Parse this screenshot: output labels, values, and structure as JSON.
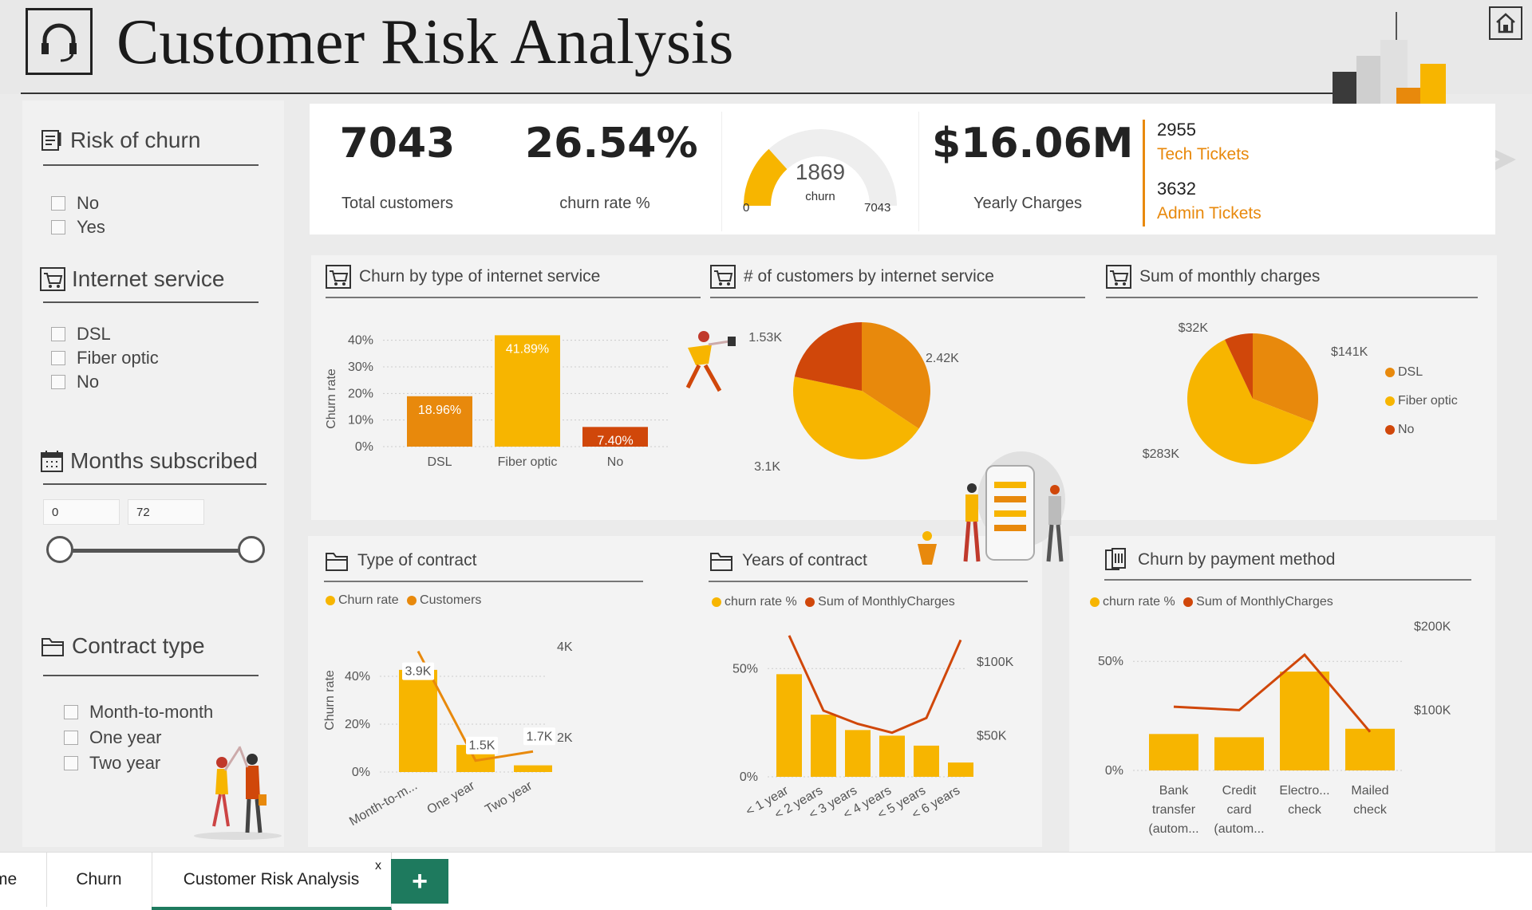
{
  "header": {
    "title": "Customer Risk Analysis"
  },
  "colors": {
    "accent_gold": "#F7B500",
    "accent_orange": "#E8890C",
    "accent_red": "#D0470A",
    "tab_green": "#1E7A5E"
  },
  "filters": {
    "risk_of_churn": {
      "label": "Risk of churn",
      "options": [
        "No",
        "Yes"
      ]
    },
    "internet_service": {
      "label": "Internet service",
      "options": [
        "DSL",
        "Fiber optic",
        "No"
      ]
    },
    "months_subscribed": {
      "label": "Months subscribed",
      "min": "0",
      "max": "72"
    },
    "contract_type": {
      "label": "Contract type",
      "options": [
        "Month-to-month",
        "One year",
        "Two year"
      ]
    }
  },
  "kpis": {
    "total_customers": {
      "value": "7043",
      "label": "Total customers"
    },
    "churn_rate": {
      "value": "26.54%",
      "label": "churn rate %"
    },
    "gauge": {
      "value": "1869",
      "label": "churn",
      "min": "0",
      "max": "7043",
      "fraction": 0.2654
    },
    "yearly_charges": {
      "value": "$16.06M",
      "label": "Yearly Charges"
    },
    "tech_tickets": {
      "value": "2955",
      "label": "Tech Tickets"
    },
    "admin_tickets": {
      "value": "3632",
      "label": "Admin Tickets"
    }
  },
  "tabs": [
    "me",
    "Churn",
    "Customer Risk Analysis"
  ],
  "tab_close": "x",
  "tab_add": "+",
  "chart_data": [
    {
      "id": "churn_by_internet",
      "type": "bar",
      "title": "Churn by type of internet service",
      "ylabel": "Churn rate",
      "categories": [
        "DSL",
        "Fiber optic",
        "No"
      ],
      "values": [
        18.96,
        41.89,
        7.4
      ],
      "labels": [
        "18.96%",
        "41.89%",
        "7.40%"
      ],
      "ylim": [
        0,
        45
      ],
      "yticks": [
        "0%",
        "10%",
        "20%",
        "30%",
        "40%"
      ]
    },
    {
      "id": "customers_by_internet",
      "type": "pie",
      "title": "# of customers by internet service",
      "slices": [
        {
          "name": "DSL",
          "value": 2420,
          "label": "2.42K"
        },
        {
          "name": "Fiber optic",
          "value": 3100,
          "label": "3.1K"
        },
        {
          "name": "No",
          "value": 1530,
          "label": "1.53K"
        }
      ]
    },
    {
      "id": "monthly_charges",
      "type": "pie",
      "title": "Sum of monthly charges",
      "legend": [
        "DSL",
        "Fiber optic",
        "No"
      ],
      "slices": [
        {
          "name": "DSL",
          "value": 141,
          "label": "$141K"
        },
        {
          "name": "Fiber optic",
          "value": 283,
          "label": "$283K"
        },
        {
          "name": "No",
          "value": 32,
          "label": "$32K"
        }
      ]
    },
    {
      "id": "type_of_contract",
      "type": "bar",
      "title": "Type of contract",
      "legend": [
        "Churn rate",
        "Customers"
      ],
      "ylabel": "Churn rate",
      "categories": [
        "Month-to-m...",
        "One year",
        "Two year"
      ],
      "series": [
        {
          "name": "Churn rate",
          "values": [
            42.7,
            11.3,
            2.8
          ]
        },
        {
          "name": "Customers",
          "values": [
            3900,
            1500,
            1700
          ],
          "labels": [
            "3.9K",
            "1.5K",
            "1.7K"
          ]
        }
      ],
      "yticks_left": [
        "0%",
        "20%",
        "40%"
      ],
      "yticks_right": [
        "2K",
        "4K"
      ]
    },
    {
      "id": "years_of_contract",
      "type": "bar",
      "title": "Years of contract",
      "legend": [
        "churn rate %",
        "Sum of MonthlyCharges"
      ],
      "categories": [
        "< 1 year",
        "< 2 years",
        "< 3 years",
        "< 4 years",
        "< 5 years",
        "< 6 years"
      ],
      "series": [
        {
          "name": "churn rate %",
          "values": [
            47.4,
            28.7,
            21.6,
            19.0,
            14.4,
            6.6
          ]
        },
        {
          "name": "Sum of MonthlyCharges",
          "values": [
            118000,
            67000,
            58000,
            52000,
            62000,
            115000
          ]
        }
      ],
      "yticks_left": [
        "0%",
        "50%"
      ],
      "yticks_right": [
        "$50K",
        "$100K"
      ]
    },
    {
      "id": "churn_by_payment",
      "type": "bar",
      "title": "Churn by payment method",
      "legend": [
        "churn rate %",
        "Sum of MonthlyCharges"
      ],
      "categories": [
        "Bank transfer (autom...",
        "Credit card (autom...",
        "Electro... check",
        "Mailed check"
      ],
      "series": [
        {
          "name": "churn rate %",
          "values": [
            16.7,
            15.2,
            45.3,
            19.1
          ]
        },
        {
          "name": "Sum of MonthlyCharges",
          "values": [
            104000,
            100000,
            166000,
            74000
          ]
        }
      ],
      "yticks_left": [
        "0%",
        "50%"
      ],
      "yticks_right": [
        "$100K",
        "$200K"
      ]
    }
  ]
}
